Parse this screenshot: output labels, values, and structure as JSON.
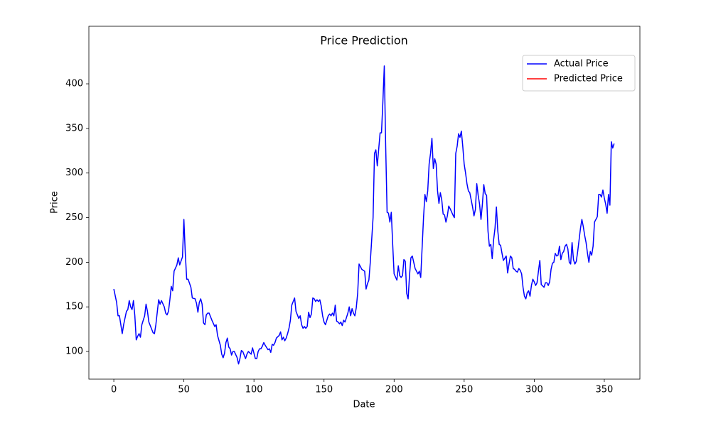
{
  "chart_data": {
    "type": "line",
    "title": "Price Prediction",
    "x_label": "Date",
    "y_label": "Price",
    "xlim": [
      -17.8,
      375.4
    ],
    "ylim": [
      69.0,
      464.5
    ],
    "xticks": [
      0,
      50,
      100,
      150,
      200,
      250,
      300,
      350
    ],
    "yticks": [
      100,
      150,
      200,
      250,
      300,
      350,
      400
    ],
    "grid": false,
    "legend": "upper right",
    "series": [
      {
        "name": "Actual Price",
        "color": "#0000ff",
        "x": [
          0,
          2,
          3,
          4,
          6,
          7,
          9,
          10,
          11,
          12,
          13,
          14,
          15,
          16,
          17,
          18,
          19,
          20,
          22,
          23,
          24,
          25,
          27,
          28,
          29,
          30,
          32,
          33,
          34,
          36,
          37,
          38,
          39,
          40,
          41,
          42,
          43,
          45,
          46,
          47,
          49,
          50,
          51,
          52,
          53,
          55,
          56,
          58,
          59,
          60,
          61,
          62,
          63,
          64,
          65,
          66,
          67,
          68,
          70,
          72,
          73,
          74,
          76,
          77,
          78,
          79,
          80,
          81,
          82,
          83,
          84,
          85,
          86,
          88,
          89,
          90,
          91,
          92,
          94,
          95,
          96,
          98,
          99,
          100,
          101,
          102,
          103,
          104,
          105,
          106,
          107,
          108,
          110,
          111,
          112,
          113,
          114,
          115,
          116,
          118,
          119,
          120,
          121,
          122,
          123,
          124,
          125,
          126,
          127,
          129,
          130,
          132,
          133,
          134,
          135,
          136,
          137,
          138,
          139,
          140,
          141,
          142,
          143,
          144,
          145,
          146,
          147,
          148,
          149,
          150,
          151,
          153,
          154,
          155,
          156,
          157,
          158,
          159,
          160,
          161,
          162,
          163,
          164,
          165,
          166,
          167,
          168,
          169,
          170,
          171,
          172,
          173,
          174,
          175,
          177,
          179,
          180,
          181,
          182,
          183,
          185,
          186,
          187,
          188,
          190,
          191,
          192,
          193,
          194,
          195,
          196,
          197,
          198,
          199,
          200,
          202,
          203,
          204,
          205,
          206,
          207,
          208,
          209,
          210,
          211,
          212,
          213,
          214,
          215,
          216,
          217,
          218,
          219,
          221,
          222,
          223,
          224,
          225,
          226,
          227,
          228,
          229,
          230,
          231,
          232,
          233,
          234,
          235,
          236,
          237,
          238,
          239,
          240,
          242,
          243,
          244,
          245,
          246,
          247,
          248,
          249,
          250,
          251,
          252,
          253,
          254,
          255,
          256,
          257,
          258,
          259,
          260,
          261,
          262,
          263,
          264,
          265,
          266,
          267,
          268,
          269,
          270,
          271,
          272,
          273,
          274,
          275,
          276,
          277,
          278,
          280,
          281,
          282,
          283,
          284,
          285,
          286,
          287,
          288,
          289,
          290,
          291,
          292,
          293,
          294,
          295,
          296,
          297,
          298,
          299,
          300,
          301,
          302,
          303,
          304,
          305,
          307,
          308,
          309,
          310,
          311,
          312,
          313,
          314,
          315,
          316,
          317,
          318,
          319,
          320,
          321,
          322,
          323,
          324,
          325,
          326,
          327,
          328,
          329,
          330,
          331,
          332,
          333,
          334,
          335,
          336,
          337,
          338,
          339,
          340,
          341,
          342,
          343,
          344,
          345,
          346,
          347,
          348,
          349,
          350,
          351,
          352,
          353,
          354,
          355,
          356,
          357
        ],
        "values": [
          170,
          155,
          140,
          140,
          120,
          130,
          145,
          147,
          157,
          150,
          147,
          157,
          140,
          113,
          117,
          120,
          116,
          130,
          140,
          153,
          145,
          133,
          125,
          121,
          120,
          130,
          158,
          153,
          157,
          150,
          143,
          141,
          145,
          158,
          173,
          168,
          190,
          197,
          205,
          197,
          206,
          248,
          210,
          181,
          181,
          172,
          160,
          159,
          154,
          144,
          155,
          159,
          153,
          132,
          130,
          141,
          143,
          143,
          135,
          128,
          130,
          118,
          107,
          97,
          93,
          98,
          110,
          115,
          105,
          103,
          96,
          100,
          100,
          93,
          86,
          92,
          101,
          100,
          92,
          97,
          100,
          97,
          104,
          98,
          92,
          92,
          100,
          103,
          103,
          106,
          110,
          107,
          102,
          103,
          99,
          108,
          107,
          110,
          115,
          118,
          122,
          113,
          116,
          112,
          115,
          120,
          126,
          135,
          152,
          160,
          145,
          137,
          140,
          130,
          126,
          128,
          126,
          128,
          144,
          138,
          142,
          160,
          159,
          156,
          158,
          156,
          158,
          151,
          140,
          133,
          130,
          140,
          142,
          140,
          143,
          140,
          152,
          134,
          133,
          131,
          133,
          129,
          135,
          133,
          138,
          143,
          150,
          140,
          148,
          143,
          140,
          149,
          165,
          198,
          192,
          190,
          170,
          176,
          180,
          200,
          250,
          322,
          326,
          308,
          345,
          345,
          380,
          420,
          330,
          256,
          255,
          245,
          256,
          220,
          187,
          180,
          196,
          185,
          183,
          185,
          203,
          201,
          165,
          159,
          185,
          205,
          207,
          200,
          193,
          190,
          187,
          190,
          183,
          250,
          276,
          268,
          280,
          310,
          322,
          339,
          305,
          316,
          310,
          280,
          266,
          278,
          270,
          254,
          253,
          245,
          252,
          263,
          260,
          253,
          250,
          322,
          330,
          344,
          340,
          347,
          330,
          310,
          300,
          288,
          280,
          278,
          270,
          262,
          252,
          259,
          288,
          275,
          265,
          248,
          265,
          287,
          277,
          275,
          235,
          218,
          220,
          204,
          225,
          238,
          262,
          235,
          220,
          219,
          210,
          202,
          207,
          188,
          198,
          207,
          205,
          193,
          192,
          190,
          189,
          193,
          191,
          187,
          172,
          162,
          159,
          166,
          168,
          162,
          174,
          181,
          178,
          174,
          177,
          190,
          202,
          175,
          172,
          177,
          177,
          174,
          178,
          192,
          199,
          200,
          210,
          207,
          208,
          218,
          203,
          210,
          212,
          218,
          220,
          215,
          200,
          198,
          222,
          203,
          198,
          201,
          212,
          225,
          238,
          248,
          240,
          230,
          222,
          210,
          200,
          212,
          208,
          218,
          245,
          248,
          251,
          276,
          276,
          273,
          281,
          272,
          265,
          255,
          276,
          264,
          335,
          328,
          333
        ]
      },
      {
        "name": "Predicted Price",
        "color": "#ff0000",
        "x": [],
        "values": []
      }
    ]
  }
}
